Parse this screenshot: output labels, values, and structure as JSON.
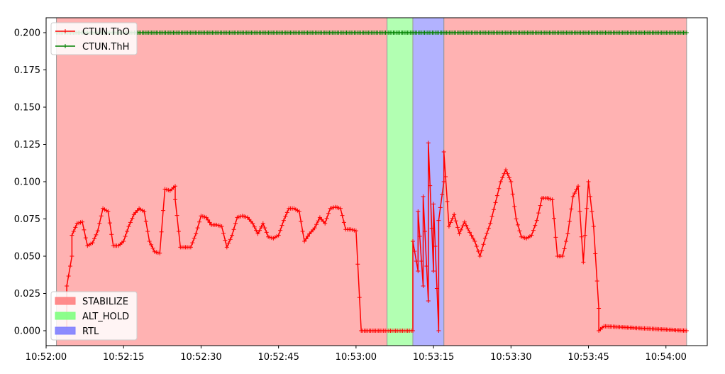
{
  "chart_data": {
    "type": "line",
    "x_axis": {
      "type": "time",
      "range": [
        "10:52:00",
        "10:54:08"
      ],
      "ticks": [
        "10:52:00",
        "10:52:15",
        "10:52:30",
        "10:52:45",
        "10:53:00",
        "10:53:15",
        "10:53:30",
        "10:53:45",
        "10:54:00"
      ]
    },
    "y_axis": {
      "range": [
        -0.01,
        0.21
      ],
      "ticks": [
        "0.000",
        "0.025",
        "0.050",
        "0.075",
        "0.100",
        "0.125",
        "0.150",
        "0.175",
        "0.200"
      ]
    },
    "grid": false,
    "legend_lines_placement": "top-left",
    "legend_modes_placement": "bottom-left",
    "modes": [
      {
        "name": "STABILIZE",
        "color": "#ff7f7f",
        "spans": [
          [
            "10:52:02",
            "10:53:06"
          ],
          [
            "10:53:17",
            "10:54:04"
          ]
        ]
      },
      {
        "name": "ALT_HOLD",
        "color": "#7fff7f",
        "spans": [
          [
            "10:53:06",
            "10:53:11"
          ]
        ]
      },
      {
        "name": "RTL",
        "color": "#7f7fff",
        "spans": [
          [
            "10:53:11",
            "10:53:17"
          ]
        ]
      }
    ],
    "series": [
      {
        "name": "CTUN.ThO",
        "color": "#ff0000",
        "marker": "+",
        "points": [
          [
            "10:52:04",
            0.0
          ],
          [
            "10:52:04",
            0.03
          ],
          [
            "10:52:05",
            0.05
          ],
          [
            "10:52:05",
            0.064
          ],
          [
            "10:52:06",
            0.072
          ],
          [
            "10:52:07",
            0.073
          ],
          [
            "10:52:08",
            0.057
          ],
          [
            "10:52:09",
            0.059
          ],
          [
            "10:52:10",
            0.067
          ],
          [
            "10:52:11",
            0.082
          ],
          [
            "10:52:12",
            0.08
          ],
          [
            "10:52:13",
            0.057
          ],
          [
            "10:52:14",
            0.057
          ],
          [
            "10:52:15",
            0.06
          ],
          [
            "10:52:16",
            0.07
          ],
          [
            "10:52:17",
            0.078
          ],
          [
            "10:52:18",
            0.082
          ],
          [
            "10:52:19",
            0.08
          ],
          [
            "10:52:20",
            0.06
          ],
          [
            "10:52:21",
            0.053
          ],
          [
            "10:52:22",
            0.052
          ],
          [
            "10:52:23",
            0.095
          ],
          [
            "10:52:24",
            0.094
          ],
          [
            "10:52:25",
            0.097
          ],
          [
            "10:52:25",
            0.088
          ],
          [
            "10:52:26",
            0.056
          ],
          [
            "10:52:27",
            0.056
          ],
          [
            "10:52:28",
            0.056
          ],
          [
            "10:52:29",
            0.065
          ],
          [
            "10:52:30",
            0.077
          ],
          [
            "10:52:31",
            0.076
          ],
          [
            "10:52:32",
            0.071
          ],
          [
            "10:52:33",
            0.071
          ],
          [
            "10:52:34",
            0.07
          ],
          [
            "10:52:35",
            0.056
          ],
          [
            "10:52:36",
            0.064
          ],
          [
            "10:52:37",
            0.076
          ],
          [
            "10:52:38",
            0.077
          ],
          [
            "10:52:39",
            0.076
          ],
          [
            "10:52:40",
            0.072
          ],
          [
            "10:52:41",
            0.065
          ],
          [
            "10:52:42",
            0.072
          ],
          [
            "10:52:43",
            0.063
          ],
          [
            "10:52:44",
            0.062
          ],
          [
            "10:52:45",
            0.064
          ],
          [
            "10:52:46",
            0.074
          ],
          [
            "10:52:47",
            0.082
          ],
          [
            "10:52:48",
            0.082
          ],
          [
            "10:52:49",
            0.08
          ],
          [
            "10:52:50",
            0.06
          ],
          [
            "10:52:51",
            0.065
          ],
          [
            "10:52:52",
            0.069
          ],
          [
            "10:52:53",
            0.076
          ],
          [
            "10:52:54",
            0.072
          ],
          [
            "10:52:55",
            0.082
          ],
          [
            "10:52:56",
            0.083
          ],
          [
            "10:52:57",
            0.082
          ],
          [
            "10:52:58",
            0.068
          ],
          [
            "10:52:59",
            0.068
          ],
          [
            "10:53:00",
            0.067
          ],
          [
            "10:53:01",
            0.0
          ],
          [
            "10:53:05",
            0.0
          ],
          [
            "10:53:06",
            0.0
          ],
          [
            "10:53:07",
            0.0
          ],
          [
            "10:53:08",
            0.0
          ],
          [
            "10:53:09",
            0.0
          ],
          [
            "10:53:10",
            0.0
          ],
          [
            "10:53:11",
            0.0
          ],
          [
            "10:53:11",
            0.06
          ],
          [
            "10:53:12",
            0.04
          ],
          [
            "10:53:12",
            0.08
          ],
          [
            "10:53:13",
            0.03
          ],
          [
            "10:53:13",
            0.09
          ],
          [
            "10:53:14",
            0.02
          ],
          [
            "10:53:14",
            0.126
          ],
          [
            "10:53:15",
            0.04
          ],
          [
            "10:53:15",
            0.085
          ],
          [
            "10:53:16",
            0.0
          ],
          [
            "10:53:16",
            0.074
          ],
          [
            "10:53:17",
            0.1
          ],
          [
            "10:53:17",
            0.12
          ],
          [
            "10:53:18",
            0.07
          ],
          [
            "10:53:19",
            0.078
          ],
          [
            "10:53:20",
            0.065
          ],
          [
            "10:53:21",
            0.073
          ],
          [
            "10:53:22",
            0.066
          ],
          [
            "10:53:23",
            0.06
          ],
          [
            "10:53:24",
            0.05
          ],
          [
            "10:53:25",
            0.062
          ],
          [
            "10:53:26",
            0.072
          ],
          [
            "10:53:27",
            0.086
          ],
          [
            "10:53:28",
            0.1
          ],
          [
            "10:53:29",
            0.108
          ],
          [
            "10:53:30",
            0.1
          ],
          [
            "10:53:31",
            0.075
          ],
          [
            "10:53:32",
            0.063
          ],
          [
            "10:53:33",
            0.062
          ],
          [
            "10:53:34",
            0.064
          ],
          [
            "10:53:35",
            0.074
          ],
          [
            "10:53:36",
            0.089
          ],
          [
            "10:53:37",
            0.089
          ],
          [
            "10:53:38",
            0.088
          ],
          [
            "10:53:39",
            0.05
          ],
          [
            "10:53:40",
            0.05
          ],
          [
            "10:53:41",
            0.065
          ],
          [
            "10:53:42",
            0.09
          ],
          [
            "10:53:43",
            0.097
          ],
          [
            "10:53:44",
            0.046
          ],
          [
            "10:53:45",
            0.1
          ],
          [
            "10:53:46",
            0.07
          ],
          [
            "10:53:47",
            0.015
          ],
          [
            "10:53:47",
            0.0
          ],
          [
            "10:53:48",
            0.003
          ],
          [
            "10:54:04",
            0.0
          ]
        ]
      },
      {
        "name": "CTUN.ThH",
        "color": "#008000",
        "marker": "+",
        "points": [
          [
            "10:52:02",
            0.2
          ],
          [
            "10:54:04",
            0.2
          ]
        ]
      }
    ]
  }
}
